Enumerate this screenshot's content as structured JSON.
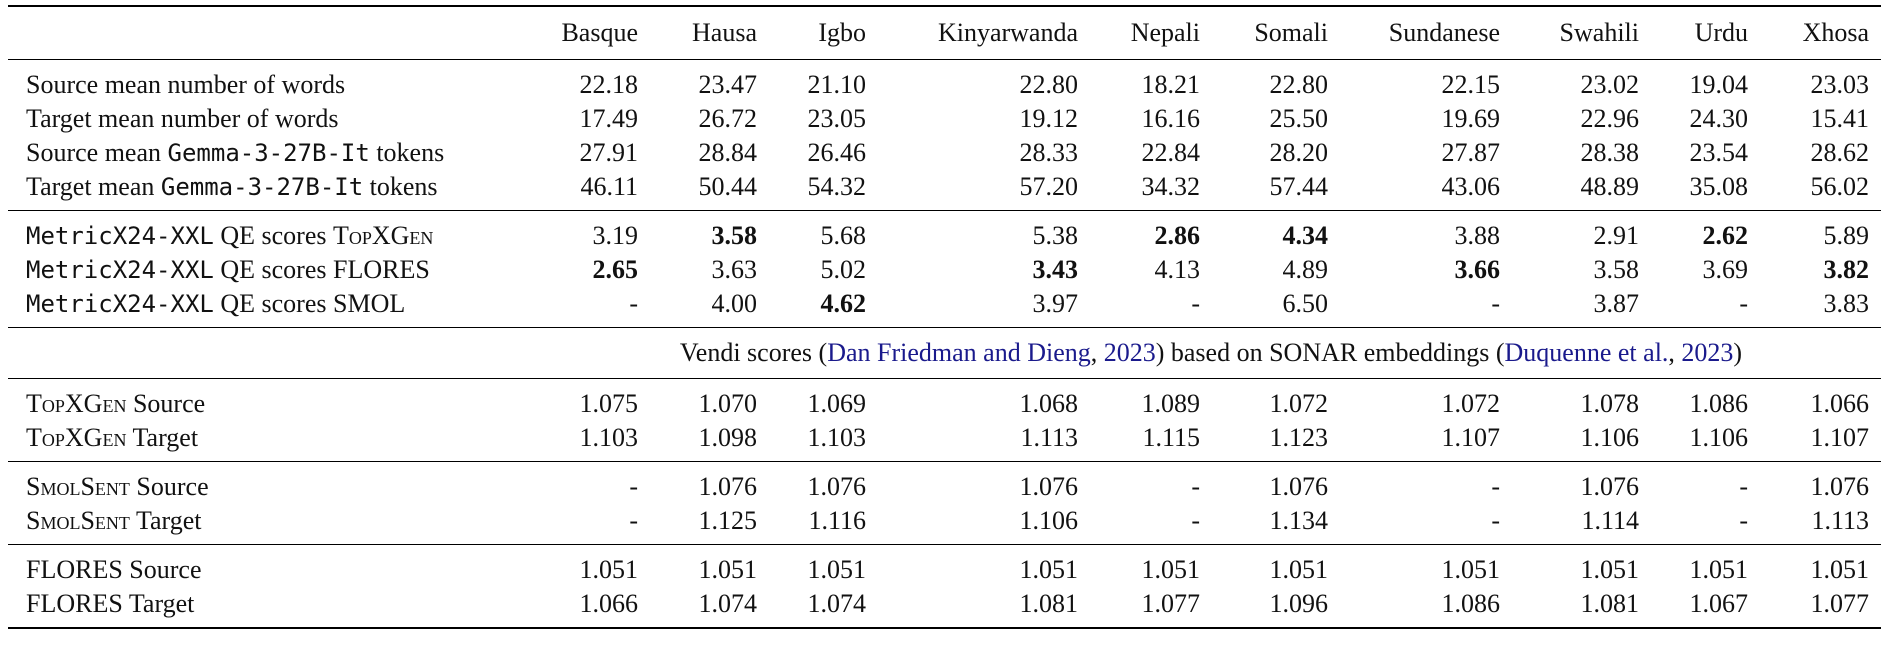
{
  "columns": [
    "Basque",
    "Hausa",
    "Igbo",
    "Kinyarwanda",
    "Nepali",
    "Somali",
    "Sundanese",
    "Swahili",
    "Urdu",
    "Xhosa"
  ],
  "groups": {
    "stats": [
      {
        "label": "Source mean number of words",
        "values": [
          "22.18",
          "23.47",
          "21.10",
          "22.80",
          "18.21",
          "22.80",
          "22.15",
          "23.02",
          "19.04",
          "23.03"
        ],
        "bold": []
      },
      {
        "label": "Target mean number of words",
        "values": [
          "17.49",
          "26.72",
          "23.05",
          "19.12",
          "16.16",
          "25.50",
          "19.69",
          "22.96",
          "24.30",
          "15.41"
        ],
        "bold": []
      },
      {
        "label_pre": "Source mean ",
        "label_mono": "Gemma-3-27B-It",
        "label_post": " tokens",
        "values": [
          "27.91",
          "28.84",
          "26.46",
          "28.33",
          "22.84",
          "28.20",
          "27.87",
          "28.38",
          "23.54",
          "28.62"
        ],
        "bold": []
      },
      {
        "label_pre": "Target mean ",
        "label_mono": "Gemma-3-27B-It",
        "label_post": " tokens",
        "values": [
          "46.11",
          "50.44",
          "54.32",
          "57.20",
          "34.32",
          "57.44",
          "43.06",
          "48.89",
          "35.08",
          "56.02"
        ],
        "bold": []
      }
    ],
    "qe": [
      {
        "label_mono": "MetricX24-XXL",
        "label_mid": " QE scores ",
        "label_sc": "TopXGen",
        "label_tail": "",
        "values": [
          "3.19",
          "3.58",
          "5.68",
          "5.38",
          "2.86",
          "4.34",
          "3.88",
          "2.91",
          "2.62",
          "5.89"
        ],
        "bold": [
          1,
          4,
          5,
          8
        ]
      },
      {
        "label_mono": "MetricX24-XXL",
        "label_mid": " QE scores ",
        "label_sc": "",
        "label_tail": "FLORES",
        "values": [
          "2.65",
          "3.63",
          "5.02",
          "3.43",
          "4.13",
          "4.89",
          "3.66",
          "3.58",
          "3.69",
          "3.82"
        ],
        "bold": [
          0,
          3,
          6,
          9
        ]
      },
      {
        "label_mono": "MetricX24-XXL",
        "label_mid": " QE scores ",
        "label_sc": "",
        "label_tail": "SMOL",
        "values": [
          "-",
          "4.00",
          "4.62",
          "3.97",
          "-",
          "6.50",
          "-",
          "3.87",
          "-",
          "3.83"
        ],
        "bold": [
          2
        ]
      }
    ],
    "vendi_caption": {
      "pre": "Vendi scores (",
      "cite1": "Dan Friedman and Dieng",
      "sep1": ", ",
      "year1": "2023",
      "mid": ") based on SONAR embeddings (",
      "cite2": "Duquenne et al.",
      "sep2": ", ",
      "year2": "2023",
      "post": ")"
    },
    "topxgen": [
      {
        "label_sc": "TopXGen",
        "label_post": " Source",
        "values": [
          "1.075",
          "1.070",
          "1.069",
          "1.068",
          "1.089",
          "1.072",
          "1.072",
          "1.078",
          "1.086",
          "1.066"
        ]
      },
      {
        "label_sc": "TopXGen",
        "label_post": " Target",
        "values": [
          "1.103",
          "1.098",
          "1.103",
          "1.113",
          "1.115",
          "1.123",
          "1.107",
          "1.106",
          "1.106",
          "1.107"
        ]
      }
    ],
    "smolsent": [
      {
        "label_sc": "SmolSent",
        "label_post": " Source",
        "values": [
          "-",
          "1.076",
          "1.076",
          "1.076",
          "-",
          "1.076",
          "-",
          "1.076",
          "-",
          "1.076"
        ]
      },
      {
        "label_sc": "SmolSent",
        "label_post": " Target",
        "values": [
          "-",
          "1.125",
          "1.116",
          "1.106",
          "-",
          "1.134",
          "-",
          "1.114",
          "-",
          "1.113"
        ]
      }
    ],
    "flores": [
      {
        "label": "FLORES Source",
        "values": [
          "1.051",
          "1.051",
          "1.051",
          "1.051",
          "1.051",
          "1.051",
          "1.051",
          "1.051",
          "1.051",
          "1.051"
        ]
      },
      {
        "label": "FLORES Target",
        "values": [
          "1.066",
          "1.074",
          "1.074",
          "1.081",
          "1.077",
          "1.096",
          "1.086",
          "1.081",
          "1.067",
          "1.077"
        ]
      }
    ]
  }
}
